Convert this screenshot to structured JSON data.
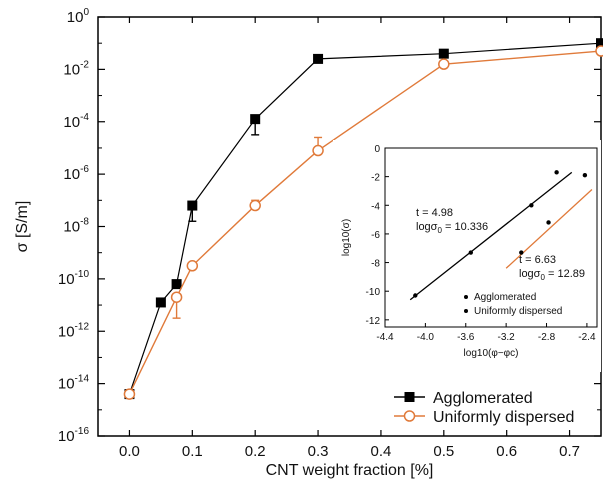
{
  "chart_data": [
    {
      "type": "scatter",
      "xlabel": "CNT weight fraction [%]",
      "ylabel": "σ [S/m]",
      "xlim": [
        -0.05,
        0.75
      ],
      "ylim_exponent": [
        -16,
        0
      ],
      "y_scale": "log",
      "x_ticks": [
        "0.0",
        "0.1",
        "0.2",
        "0.3",
        "0.4",
        "0.5",
        "0.6",
        "0.7"
      ],
      "y_ticks": [
        {
          "base": "10",
          "exp": "0"
        },
        {
          "base": "10",
          "exp": "-2"
        },
        {
          "base": "10",
          "exp": "-4"
        },
        {
          "base": "10",
          "exp": "-6"
        },
        {
          "base": "10",
          "exp": "-8"
        },
        {
          "base": "10",
          "exp": "-10"
        },
        {
          "base": "10",
          "exp": "-12"
        },
        {
          "base": "10",
          "exp": "-14"
        },
        {
          "base": "10",
          "exp": "-16"
        }
      ],
      "legend_position": "bottom-right",
      "series": [
        {
          "name": "Agglomerated",
          "color": "#000000",
          "marker": "filled-square",
          "x": [
            0.0,
            0.05,
            0.075,
            0.1,
            0.2,
            0.3,
            0.5,
            0.75
          ],
          "y_log10": [
            -14.4,
            -10.9,
            -10.2,
            -7.2,
            -3.9,
            -1.6,
            -1.4,
            -1.0
          ],
          "err_lo_log10": [
            0,
            0,
            0,
            0.6,
            0.6,
            0,
            0.5,
            0
          ],
          "err_hi_log10": [
            0,
            0,
            0,
            0,
            0,
            0,
            0,
            0
          ]
        },
        {
          "name": "Uniformly dispersed",
          "color": "#e07a3a",
          "marker": "open-circle",
          "x": [
            0.0,
            0.075,
            0.1,
            0.2,
            0.3,
            0.5,
            0.75
          ],
          "y_log10": [
            -14.4,
            -10.7,
            -9.5,
            -7.2,
            -5.1,
            -1.8,
            -1.3
          ],
          "err_lo_log10": [
            0,
            0.8,
            0,
            0,
            0,
            0,
            0
          ],
          "err_hi_log10": [
            0,
            0,
            0,
            0.2,
            0.5,
            0,
            0
          ]
        }
      ]
    },
    {
      "type": "scatter",
      "xlabel": "log10(φ−φc)",
      "ylabel": "log10(σ)",
      "xlim": [
        -4.4,
        -2.3
      ],
      "ylim": [
        -12.5,
        0
      ],
      "x_ticks": [
        "-4.4",
        "-4.0",
        "-3.6",
        "-3.2",
        "-2.8",
        "-2.4"
      ],
      "y_ticks": [
        "0",
        "-2",
        "-4",
        "-6",
        "-8",
        "-10",
        "-12"
      ],
      "x_tick_values": [
        -4.4,
        -4.0,
        -3.6,
        -3.2,
        -2.8,
        -2.4
      ],
      "y_tick_values": [
        0,
        -2,
        -4,
        -6,
        -8,
        -10,
        -12
      ],
      "legend_position": "bottom-right",
      "annotations": [
        {
          "line1": "t = 4.98",
          "line2_prefix": "logσ",
          "line2_sub": "0",
          "line2_suffix": "= 10.336"
        },
        {
          "line1": "t = 6.63",
          "line2_prefix": "logσ",
          "line2_sub": "0",
          "line2_suffix": "= 12.89"
        }
      ],
      "series": [
        {
          "name": "Agglomerated",
          "color": "#000000",
          "x": [
            -4.1,
            -3.55,
            -2.95,
            -2.7,
            -2.42
          ],
          "y": [
            -10.3,
            -7.3,
            -4.0,
            -1.7,
            -1.9
          ],
          "fit_x": [
            -4.15,
            -2.55
          ],
          "fit_y": [
            -10.6,
            -1.7
          ]
        },
        {
          "name": "Uniformly dispersed",
          "color": "#e07a3a",
          "x": [
            -3.05,
            -2.78
          ],
          "y": [
            -7.3,
            -5.2
          ],
          "fit_x": [
            -3.2,
            -2.35
          ],
          "fit_y": [
            -8.4,
            -2.9
          ]
        }
      ]
    }
  ]
}
